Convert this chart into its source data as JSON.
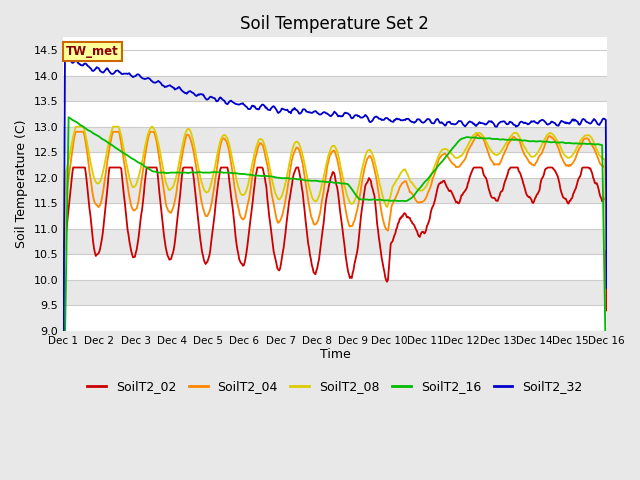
{
  "title": "Soil Temperature Set 2",
  "xlabel": "Time",
  "ylabel": "Soil Temperature (C)",
  "ylim": [
    9.0,
    14.75
  ],
  "yticks": [
    9.0,
    9.5,
    10.0,
    10.5,
    11.0,
    11.5,
    12.0,
    12.5,
    13.0,
    13.5,
    14.0,
    14.5
  ],
  "series_colors": {
    "SoilT2_02": "#cc0000",
    "SoilT2_04": "#ff8800",
    "SoilT2_08": "#ddcc00",
    "SoilT2_16": "#00bb00",
    "SoilT2_32": "#0000cc"
  },
  "bg_white": "#ffffff",
  "bg_gray": "#e8e8e8",
  "fig_bg": "#e8e8e8",
  "xtick_labels": [
    "Dec 1",
    "Dec 2",
    "Dec 3",
    "Dec 4",
    "Dec 5",
    "Dec 6",
    "Dec 7",
    "Dec 8",
    "Dec 9",
    "Dec 10",
    "Dec 11",
    "Dec 12",
    "Dec 13",
    "Dec 14",
    "Dec 15",
    "Dec 16"
  ],
  "legend_label": "TW_met",
  "legend_box_color": "#ffff99",
  "legend_box_edge": "#cc6600",
  "figsize": [
    6.4,
    4.8
  ],
  "dpi": 100
}
